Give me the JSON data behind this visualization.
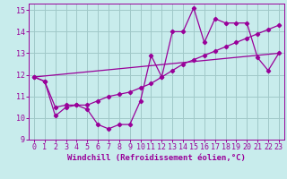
{
  "xlabel": "Windchill (Refroidissement éolien,°C)",
  "bg_color": "#c8ecec",
  "grid_color": "#a0c8c8",
  "line_color": "#990099",
  "xlim": [
    -0.5,
    23.5
  ],
  "ylim": [
    9,
    15.3
  ],
  "xticks": [
    0,
    1,
    2,
    3,
    4,
    5,
    6,
    7,
    8,
    9,
    10,
    11,
    12,
    13,
    14,
    15,
    16,
    17,
    18,
    19,
    20,
    21,
    22,
    23
  ],
  "yticks": [
    9,
    10,
    11,
    12,
    13,
    14,
    15
  ],
  "line1_x": [
    0,
    1,
    2,
    3,
    4,
    5,
    6,
    7,
    8,
    9,
    10,
    11,
    12,
    13,
    14,
    15,
    16,
    17,
    18,
    19,
    20,
    21,
    22,
    23
  ],
  "line1_y": [
    11.9,
    11.7,
    10.1,
    10.5,
    10.6,
    10.4,
    9.7,
    9.5,
    9.7,
    9.7,
    10.8,
    12.9,
    11.9,
    14.0,
    14.0,
    15.1,
    13.5,
    14.6,
    14.4,
    14.4,
    14.4,
    12.8,
    12.2,
    13.0
  ],
  "line2_x": [
    0,
    1,
    2,
    3,
    4,
    5,
    6,
    7,
    8,
    9,
    10,
    11,
    12,
    13,
    14,
    15,
    16,
    17,
    18,
    19,
    20,
    21,
    22,
    23
  ],
  "line2_y": [
    11.9,
    11.7,
    10.5,
    10.6,
    10.6,
    10.6,
    10.8,
    11.0,
    11.1,
    11.2,
    11.4,
    11.6,
    11.9,
    12.2,
    12.5,
    12.7,
    12.9,
    13.1,
    13.3,
    13.5,
    13.7,
    13.9,
    14.1,
    14.3
  ],
  "line3_x": [
    0,
    23
  ],
  "line3_y": [
    11.9,
    13.0
  ],
  "marker": "D",
  "marker_size": 2.2,
  "linewidth": 0.9,
  "xlabel_fontsize": 6.5,
  "tick_fontsize": 6.0
}
